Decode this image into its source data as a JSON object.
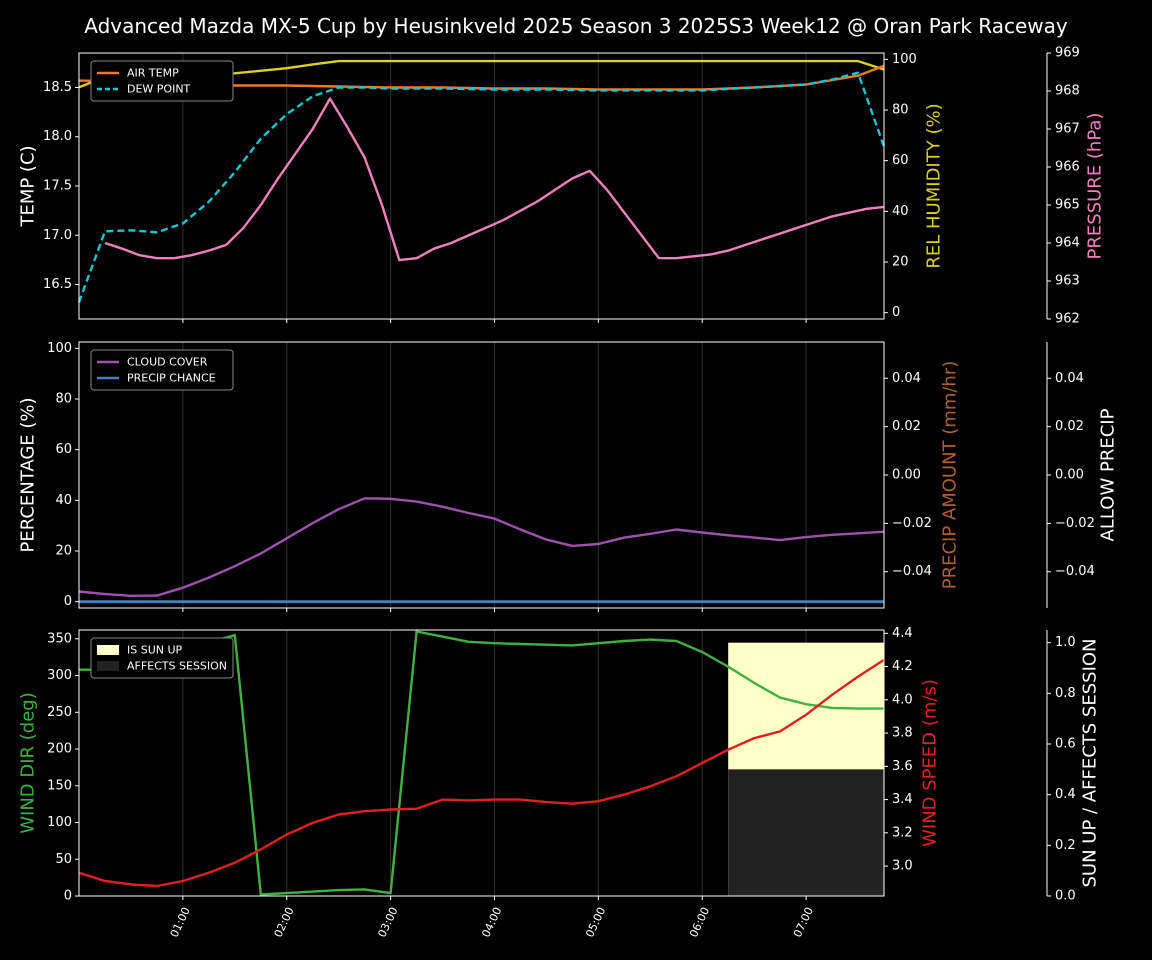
{
  "title": "Advanced Mazda MX-5 Cup by Heusinkveld 2025 Season 3 2025S3 Week12 @ Oran Park Raceway",
  "x_ticks": [
    "01:00",
    "02:00",
    "03:00",
    "04:00",
    "05:00",
    "06:00",
    "07:00"
  ],
  "x_tick_hours": [
    1,
    2,
    3,
    4,
    5,
    6,
    7
  ],
  "x_hours": [
    0.25,
    0.4167,
    0.5833,
    0.75,
    0.9167,
    1.0833,
    1.25,
    1.4167,
    1.5833,
    1.75,
    1.9167,
    2.0833,
    2.25,
    2.4167,
    2.5833,
    2.75,
    2.9167,
    3.0833,
    3.25,
    3.4167,
    3.5833,
    3.75,
    3.9167,
    4.0833,
    4.25,
    4.4167,
    4.5833,
    4.75,
    4.9167,
    5.0833,
    5.25,
    5.4167,
    5.5833,
    5.75,
    5.9167,
    6.0833,
    6.25,
    6.4167,
    6.5833,
    6.75,
    6.9167,
    7.0833,
    7.25,
    7.4167,
    7.5833,
    7.75
  ],
  "colors": {
    "air_temp": "#f07820",
    "dew_point": "#10c8d8",
    "humidity": "#dcd020",
    "pressure": "#f080c0",
    "cloud": "#9f50b0",
    "precip_chance": "#4080c8",
    "wind_dir": "#40b040",
    "wind_speed": "#e02020",
    "sun_up": "#ffffc8",
    "affects_session": "#222222",
    "axis": "#ffffff",
    "precip_amount_label": "#b06030"
  },
  "chart_data": [
    {
      "type": "line",
      "panel": "temperature",
      "ylabel": "TEMP (C)",
      "ylim": [
        16.15,
        18.85
      ],
      "yticks": [
        16.5,
        17.0,
        17.5,
        18.0,
        18.5
      ],
      "ytick_labels": [
        "16.5",
        "17.0",
        "17.5",
        "18.0",
        "18.5"
      ],
      "legend": "top-left",
      "series": [
        {
          "name": "AIR TEMP",
          "axis": "left",
          "style": "solid",
          "x": [
            0.0,
            0.5,
            1.0,
            1.5,
            2.0,
            2.5,
            3.0,
            3.5,
            4.0,
            4.5,
            5.0,
            5.5,
            6.0,
            6.5,
            7.0,
            7.5,
            7.75
          ],
          "values": [
            18.57,
            18.56,
            18.54,
            18.52,
            18.52,
            18.51,
            18.5,
            18.5,
            18.49,
            18.49,
            18.48,
            18.48,
            18.48,
            18.5,
            18.53,
            18.62,
            18.72
          ]
        },
        {
          "name": "DEW POINT",
          "axis": "left",
          "style": "dashed",
          "x": [
            0.0,
            0.25,
            0.5,
            0.75,
            1.0,
            1.25,
            1.5,
            1.75,
            2.0,
            2.25,
            2.5,
            2.75,
            3.0,
            3.5,
            4.0,
            4.5,
            5.0,
            5.5,
            6.0,
            6.5,
            7.0,
            7.25,
            7.5,
            7.75
          ],
          "values": [
            16.32,
            17.04,
            17.05,
            17.03,
            17.12,
            17.34,
            17.64,
            17.98,
            18.23,
            18.41,
            18.5,
            18.5,
            18.49,
            18.49,
            18.48,
            18.48,
            18.47,
            18.47,
            18.47,
            18.5,
            18.53,
            18.58,
            18.65,
            17.9
          ]
        },
        {
          "name": "REL HUMIDITY",
          "axis": "humidity",
          "style": "solid",
          "x": [
            0.0,
            0.25,
            0.5,
            1.0,
            1.5,
            2.0,
            2.25,
            2.5,
            2.75,
            3.0,
            4.0,
            5.0,
            6.0,
            7.0,
            7.5,
            7.75
          ],
          "values": [
            89,
            93,
            93.5,
            93.5,
            94.5,
            96.5,
            98,
            99.3,
            99.3,
            99.3,
            99.3,
            99.3,
            99.3,
            99.3,
            99.3,
            96
          ]
        },
        {
          "name": "PRESSURE",
          "axis": "pressure",
          "style": "solid",
          "values": [
            964.0,
            963.85,
            963.68,
            963.6,
            963.6,
            963.68,
            963.8,
            963.95,
            964.4,
            965.0,
            965.7,
            966.35,
            967.0,
            967.8,
            967.05,
            966.25,
            965.0,
            963.55,
            963.6,
            963.85,
            964.0,
            964.2,
            964.4,
            964.6,
            964.85,
            965.1,
            965.4,
            965.7,
            965.9,
            965.4,
            964.8,
            964.2,
            963.6,
            963.6,
            963.65,
            963.7,
            963.8,
            963.95,
            964.1,
            964.25,
            964.4,
            964.55,
            964.7,
            964.8,
            964.9,
            964.95
          ]
        }
      ],
      "humidity_axis": {
        "label": "REL HUMIDITY (%)",
        "ylim": [
          -2.5,
          102.5
        ],
        "ticks": [
          0,
          20,
          40,
          60,
          80,
          100
        ],
        "tick_labels": [
          "0",
          "20",
          "40",
          "60",
          "80",
          "100"
        ]
      },
      "pressure_axis": {
        "label": "PRESSURE (hPa)",
        "ylim": [
          962,
          969
        ],
        "ticks": [
          962,
          963,
          964,
          965,
          966,
          967,
          968,
          969
        ],
        "tick_labels": [
          "962",
          "963",
          "964",
          "965",
          "966",
          "967",
          "968",
          "969"
        ]
      }
    },
    {
      "type": "line",
      "panel": "precipitation",
      "ylabel": "PERCENTAGE (%)",
      "ylim": [
        -2.5,
        102.5
      ],
      "yticks": [
        0,
        20,
        40,
        60,
        80,
        100
      ],
      "ytick_labels": [
        "0",
        "20",
        "40",
        "60",
        "80",
        "100"
      ],
      "legend": "top-left",
      "series": [
        {
          "name": "CLOUD COVER",
          "axis": "left",
          "x": [
            0.0,
            0.25,
            0.5,
            0.75,
            1.0,
            1.25,
            1.5,
            1.75,
            2.0,
            2.25,
            2.5,
            2.75,
            3.0,
            3.25,
            3.5,
            3.75,
            4.0,
            4.25,
            4.5,
            4.75,
            5.0,
            5.25,
            5.5,
            5.75,
            6.0,
            6.25,
            6.5,
            6.75,
            7.0,
            7.25,
            7.5,
            7.75
          ],
          "values": [
            4.0,
            3.0,
            2.3,
            2.4,
            5.5,
            9.5,
            14.0,
            19.0,
            25.0,
            31.0,
            36.5,
            40.8,
            40.6,
            39.5,
            37.5,
            35.0,
            32.8,
            28.5,
            24.5,
            22.0,
            22.8,
            25.3,
            26.8,
            28.5,
            27.3,
            26.2,
            25.3,
            24.3,
            25.5,
            26.4,
            27.0,
            27.6
          ]
        },
        {
          "name": "PRECIP CHANCE",
          "axis": "left",
          "x": [
            0.0,
            7.75
          ],
          "values": [
            0,
            0
          ]
        }
      ],
      "precip_amount_axis": {
        "label": "PRECIP AMOUNT (mm/hr)",
        "ylim": [
          -0.055,
          0.055
        ],
        "ticks": [
          -0.04,
          -0.02,
          0.0,
          0.02,
          0.04
        ],
        "tick_labels": [
          "−0.04",
          "−0.02",
          "0.00",
          "0.02",
          "0.04"
        ]
      },
      "allow_precip_axis": {
        "label": "ALLOW PRECIP",
        "ylim": [
          -0.055,
          0.055
        ],
        "ticks": [
          -0.04,
          -0.02,
          0.0,
          0.02,
          0.04
        ],
        "tick_labels": [
          "−0.04",
          "−0.02",
          "0.00",
          "0.02",
          "0.04"
        ]
      }
    },
    {
      "type": "line",
      "panel": "wind",
      "ylabel": "WIND DIR (deg)",
      "ylim": [
        0,
        362
      ],
      "yticks": [
        0,
        50,
        100,
        150,
        200,
        250,
        300,
        350
      ],
      "ytick_labels": [
        "0",
        "50",
        "100",
        "150",
        "200",
        "250",
        "300",
        "350"
      ],
      "legend": "top-left",
      "series": [
        {
          "name": "WIND DIR",
          "axis": "left",
          "x": [
            0.0,
            0.25,
            0.5,
            0.75,
            1.0,
            1.25,
            1.5,
            1.75,
            2.0,
            2.25,
            2.5,
            2.75,
            3.0,
            3.25,
            3.5,
            3.75,
            4.0,
            4.25,
            4.5,
            4.75,
            5.0,
            5.25,
            5.5,
            5.75,
            6.0,
            6.25,
            6.5,
            6.75,
            7.0,
            7.25,
            7.5,
            7.75
          ],
          "values": [
            308,
            308,
            320,
            333,
            344,
            345,
            355,
            2,
            4,
            6,
            8,
            9,
            4,
            360,
            353,
            346,
            344,
            343,
            342,
            341,
            344,
            347,
            349,
            347,
            332,
            312,
            290,
            270,
            261,
            256,
            255,
            255
          ]
        },
        {
          "name": "WIND SPEED",
          "axis": "speed",
          "x": [
            0.0,
            0.25,
            0.5,
            0.75,
            1.0,
            1.25,
            1.5,
            1.75,
            2.0,
            2.25,
            2.5,
            2.75,
            3.0,
            3.25,
            3.5,
            3.75,
            4.0,
            4.25,
            4.5,
            4.75,
            5.0,
            5.25,
            5.5,
            5.75,
            6.0,
            6.25,
            6.5,
            6.75,
            7.0,
            7.25,
            7.5,
            7.75
          ],
          "values": [
            2.96,
            2.91,
            2.89,
            2.88,
            2.91,
            2.96,
            3.02,
            3.1,
            3.19,
            3.26,
            3.31,
            3.33,
            3.34,
            3.345,
            3.4,
            3.395,
            3.4,
            3.4,
            3.385,
            3.375,
            3.39,
            3.43,
            3.48,
            3.54,
            3.62,
            3.7,
            3.77,
            3.81,
            3.91,
            4.03,
            4.14,
            4.24
          ]
        }
      ],
      "speed_axis": {
        "label": "WIND SPEED (m/s)",
        "ylim": [
          2.82,
          4.42
        ],
        "ticks": [
          3.0,
          3.2,
          3.4,
          3.6,
          3.8,
          4.0,
          4.2,
          4.4
        ],
        "tick_labels": [
          "3.0",
          "3.2",
          "3.4",
          "3.6",
          "3.8",
          "4.0",
          "4.2",
          "4.4"
        ]
      },
      "sun_axis": {
        "label": "SUN UP / AFFECTS SESSION",
        "ylim": [
          0,
          1.05
        ],
        "ticks": [
          0.0,
          0.2,
          0.4,
          0.6,
          0.8,
          1.0
        ],
        "tick_labels": [
          "0.0",
          "0.2",
          "0.4",
          "0.6",
          "0.8",
          "1.0"
        ]
      },
      "bands": [
        {
          "name": "IS SUN UP",
          "x_start": 6.25,
          "x_end": 7.75,
          "value": 1.0
        },
        {
          "name": "AFFECTS SESSION",
          "x_start": 6.25,
          "x_end": 7.75,
          "value": 0.5
        }
      ]
    }
  ]
}
